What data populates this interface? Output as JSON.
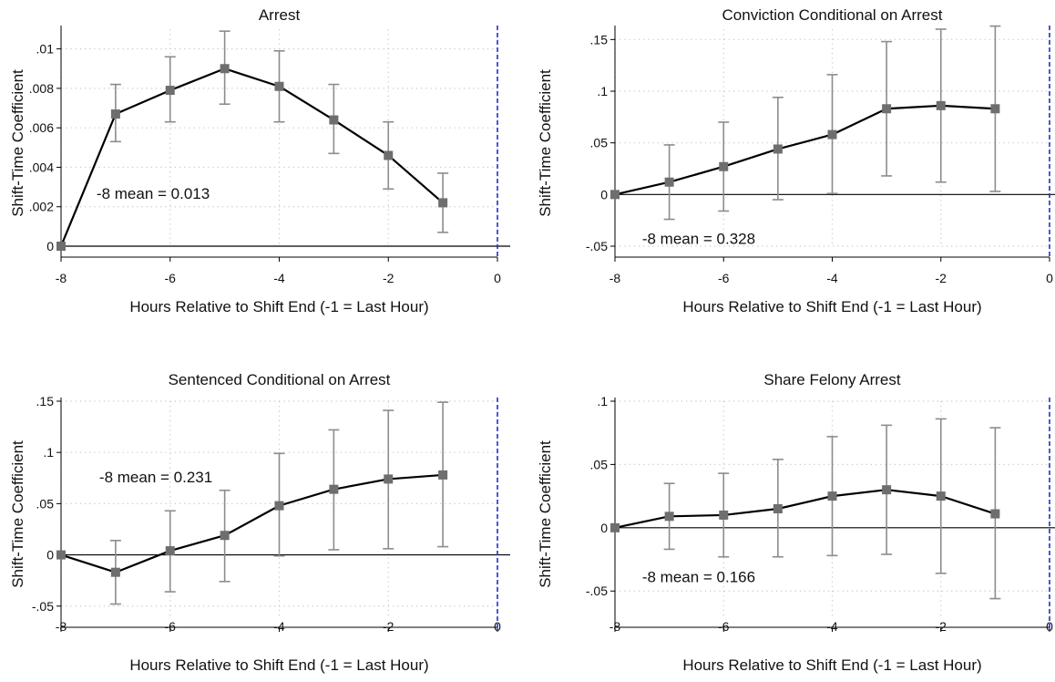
{
  "chart_data": [
    {
      "type": "line",
      "title": "Arrest",
      "xlabel": "Hours Relative to Shift End (-1 = Last Hour)",
      "ylabel": "Shift-Time Coefficient",
      "xlim": [
        -8,
        0
      ],
      "ylim": [
        0,
        0.011
      ],
      "x_ticks": [
        -8,
        -6,
        -4,
        -2,
        0
      ],
      "x_tick_labels": [
        "-8",
        "-6",
        "-4",
        "-2",
        "0"
      ],
      "y_ticks": [
        0,
        0.002,
        0.004,
        0.006,
        0.008,
        0.01
      ],
      "y_tick_labels": [
        "0",
        ".002",
        ".004",
        ".006",
        ".008",
        ".01"
      ],
      "annotation": {
        "text": "-8 mean =  0.013",
        "x": -7.35,
        "y": 0.0024
      },
      "grid": true,
      "reference_line_x": 0,
      "x": [
        -8,
        -7,
        -6,
        -5,
        -4,
        -3,
        -2,
        -1
      ],
      "y": [
        0,
        0.0067,
        0.0079,
        0.009,
        0.0081,
        0.0064,
        0.0046,
        0.0022
      ],
      "ci_low": [
        0,
        0.0053,
        0.0063,
        0.0072,
        0.0063,
        0.0047,
        0.0029,
        0.0007
      ],
      "ci_high": [
        0,
        0.0082,
        0.0096,
        0.0109,
        0.0099,
        0.0082,
        0.0063,
        0.0037
      ]
    },
    {
      "type": "line",
      "title": "Conviction Conditional on Arrest",
      "xlabel": "Hours Relative to Shift End (-1 = Last Hour)",
      "ylabel": "Shift-Time Coefficient",
      "xlim": [
        -8,
        0
      ],
      "ylim": [
        -0.05,
        0.16
      ],
      "x_ticks": [
        -8,
        -6,
        -4,
        -2,
        0
      ],
      "x_tick_labels": [
        "-8",
        "-6",
        "-4",
        "-2",
        "0"
      ],
      "y_ticks": [
        -0.05,
        0,
        0.05,
        0.1,
        0.15
      ],
      "y_tick_labels": [
        "-.05",
        "0",
        ".05",
        ".1",
        ".15"
      ],
      "annotation": {
        "text": "-8 mean =  0.328",
        "x": -7.5,
        "y": -0.048
      },
      "grid": true,
      "reference_line_x": 0,
      "x": [
        -8,
        -7,
        -6,
        -5,
        -4,
        -3,
        -2,
        -1
      ],
      "y": [
        0,
        0.012,
        0.027,
        0.044,
        0.058,
        0.083,
        0.086,
        0.083
      ],
      "ci_low": [
        0,
        -0.024,
        -0.016,
        -0.005,
        0.001,
        0.018,
        0.012,
        0.003
      ],
      "ci_high": [
        0,
        0.048,
        0.07,
        0.094,
        0.116,
        0.148,
        0.16,
        0.163
      ]
    },
    {
      "type": "line",
      "title": "Sentenced Conditional on Arrest",
      "xlabel": "Hours Relative to Shift End (-1 = Last Hour)",
      "ylabel": "Shift-Time Coefficient",
      "xlim": [
        -8,
        0
      ],
      "ylim": [
        -0.06,
        0.15
      ],
      "x_ticks": [
        -8,
        -6,
        -4,
        -2,
        0
      ],
      "x_tick_labels": [
        "-8",
        "-6",
        "-4",
        "-2",
        "0"
      ],
      "y_ticks": [
        -0.05,
        0,
        0.05,
        0.1,
        0.15
      ],
      "y_tick_labels": [
        "-.05",
        "0",
        ".05",
        ".1",
        ".15"
      ],
      "annotation": {
        "text": "-8 mean =  0.231",
        "x": -7.3,
        "y": 0.071
      },
      "grid": true,
      "reference_line_x": 0,
      "x": [
        -8,
        -7,
        -6,
        -5,
        -4,
        -3,
        -2,
        -1
      ],
      "y": [
        0,
        -0.017,
        0.004,
        0.019,
        0.048,
        0.064,
        0.074,
        0.078
      ],
      "ci_low": [
        0,
        -0.048,
        -0.036,
        -0.026,
        -0.001,
        0.005,
        0.006,
        0.008
      ],
      "ci_high": [
        0,
        0.014,
        0.043,
        0.063,
        0.099,
        0.122,
        0.141,
        0.149
      ]
    },
    {
      "type": "line",
      "title": "Share Felony Arrest",
      "xlabel": "Hours Relative to Shift End (-1 = Last Hour)",
      "ylabel": "Shift-Time Coefficient",
      "xlim": [
        -8,
        0
      ],
      "ylim": [
        -0.07,
        0.1
      ],
      "x_ticks": [
        -8,
        -6,
        -4,
        -2,
        0
      ],
      "x_tick_labels": [
        "-8",
        "-6",
        "-4",
        "-2",
        "0"
      ],
      "y_ticks": [
        -0.05,
        0,
        0.05,
        0.1
      ],
      "y_tick_labels": [
        "-.05",
        "0",
        ".05",
        ".1"
      ],
      "annotation": {
        "text": "-8 mean =  0.166",
        "x": -7.5,
        "y": -0.043
      },
      "grid": true,
      "reference_line_x": 0,
      "x": [
        -8,
        -7,
        -6,
        -5,
        -4,
        -3,
        -2,
        -1
      ],
      "y": [
        0,
        0.009,
        0.01,
        0.015,
        0.025,
        0.03,
        0.025,
        0.011
      ],
      "ci_low": [
        0,
        -0.017,
        -0.023,
        -0.023,
        -0.022,
        -0.021,
        -0.036,
        -0.056
      ],
      "ci_high": [
        0,
        0.035,
        0.043,
        0.054,
        0.072,
        0.081,
        0.086,
        0.079
      ]
    }
  ],
  "colors": {
    "line": "#000000",
    "marker": "#6e6e6e",
    "ci": "#8c8c8c",
    "grid": "#c8c8c8",
    "reference_line": "#1f2fd0"
  }
}
